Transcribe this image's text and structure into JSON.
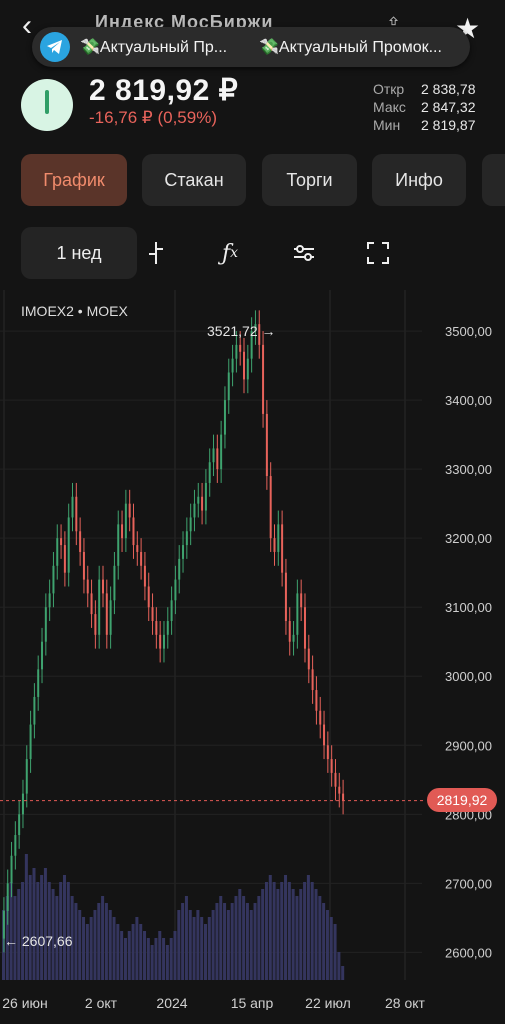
{
  "header": {
    "ghost_title": "Индекс МосБиржи",
    "price": "2 819,92 ₽",
    "change": "-16,76 ₽ (0,59%)",
    "stats": [
      {
        "label": "Откр",
        "value": "2 838,78"
      },
      {
        "label": "Макс",
        "value": "2 847,32"
      },
      {
        "label": "Мин",
        "value": "2 819,87"
      }
    ]
  },
  "notification": {
    "item1": "💸Актуальный Пр...",
    "item2": "💸Актуальный Промок..."
  },
  "tabs": [
    "График",
    "Стакан",
    "Торги",
    "Инфо"
  ],
  "toolbar": {
    "period": "1 нед"
  },
  "chart_label": "IMOEX2 • MOEX",
  "colors": {
    "up": "#3fa36f",
    "down": "#e8635b",
    "volume": "#34355e",
    "accent": "#f08b6c"
  },
  "chart_data": {
    "type": "candlestick",
    "y_ticks": [
      "3500,00",
      "3400,00",
      "3300,00",
      "3200,00",
      "3100,00",
      "3000,00",
      "2900,00",
      "2800,00",
      "2700,00",
      "2600,00"
    ],
    "x_ticks": [
      "26 июн",
      "2 окт",
      "2024",
      "15 апр",
      "22 июл",
      "28 окт"
    ],
    "ylim": [
      2560,
      3545
    ],
    "high_label": "3521,72",
    "low_label": "2607,66",
    "last_price": "2819,92",
    "series": {
      "o": [
        2620,
        2660,
        2700,
        2740,
        2770,
        2800,
        2830,
        2880,
        2930,
        2970,
        3010,
        3050,
        3100,
        3120,
        3160,
        3200,
        3190,
        3150,
        3230,
        3260,
        3210,
        3180,
        3140,
        3120,
        3090,
        3060,
        3140,
        3120,
        3060,
        3110,
        3160,
        3220,
        3200,
        3250,
        3230,
        3190,
        3180,
        3160,
        3130,
        3100,
        3080,
        3060,
        3040,
        3060,
        3080,
        3110,
        3140,
        3170,
        3190,
        3210,
        3230,
        3250,
        3260,
        3240,
        3280,
        3310,
        3330,
        3300,
        3350,
        3400,
        3440,
        3460,
        3480,
        3470,
        3430,
        3460,
        3500,
        3510,
        3480,
        3380,
        3290,
        3200,
        3180,
        3220,
        3150,
        3080,
        3050,
        3060,
        3120,
        3100,
        3040,
        3010,
        2980,
        2950,
        2930,
        2900,
        2880,
        2860,
        2840,
        2830
      ],
      "c": [
        2660,
        2700,
        2740,
        2770,
        2800,
        2830,
        2880,
        2930,
        2970,
        3010,
        3050,
        3100,
        3120,
        3160,
        3200,
        3190,
        3150,
        3230,
        3260,
        3210,
        3180,
        3140,
        3120,
        3090,
        3060,
        3140,
        3120,
        3060,
        3110,
        3160,
        3220,
        3200,
        3250,
        3230,
        3190,
        3180,
        3160,
        3130,
        3100,
        3080,
        3060,
        3040,
        3060,
        3080,
        3110,
        3140,
        3170,
        3190,
        3210,
        3230,
        3250,
        3260,
        3240,
        3280,
        3310,
        3330,
        3300,
        3350,
        3400,
        3440,
        3460,
        3480,
        3470,
        3430,
        3460,
        3500,
        3510,
        3480,
        3380,
        3290,
        3200,
        3180,
        3220,
        3150,
        3080,
        3050,
        3060,
        3120,
        3100,
        3040,
        3010,
        2980,
        2950,
        2930,
        2900,
        2880,
        2860,
        2840,
        2830,
        2820
      ],
      "v": [
        0.5,
        0.6,
        0.7,
        0.6,
        0.65,
        0.7,
        0.9,
        0.75,
        0.8,
        0.7,
        0.75,
        0.8,
        0.7,
        0.65,
        0.6,
        0.7,
        0.75,
        0.7,
        0.6,
        0.55,
        0.5,
        0.45,
        0.4,
        0.45,
        0.5,
        0.55,
        0.6,
        0.55,
        0.5,
        0.45,
        0.4,
        0.35,
        0.3,
        0.35,
        0.4,
        0.45,
        0.4,
        0.35,
        0.3,
        0.25,
        0.3,
        0.35,
        0.3,
        0.25,
        0.3,
        0.35,
        0.5,
        0.55,
        0.6,
        0.5,
        0.45,
        0.5,
        0.45,
        0.4,
        0.45,
        0.5,
        0.55,
        0.6,
        0.55,
        0.5,
        0.55,
        0.6,
        0.65,
        0.6,
        0.55,
        0.5,
        0.55,
        0.6,
        0.65,
        0.7,
        0.75,
        0.7,
        0.65,
        0.7,
        0.75,
        0.7,
        0.65,
        0.6,
        0.65,
        0.7,
        0.75,
        0.7,
        0.65,
        0.6,
        0.55,
        0.5,
        0.45,
        0.4,
        0.2,
        0.1
      ]
    }
  }
}
